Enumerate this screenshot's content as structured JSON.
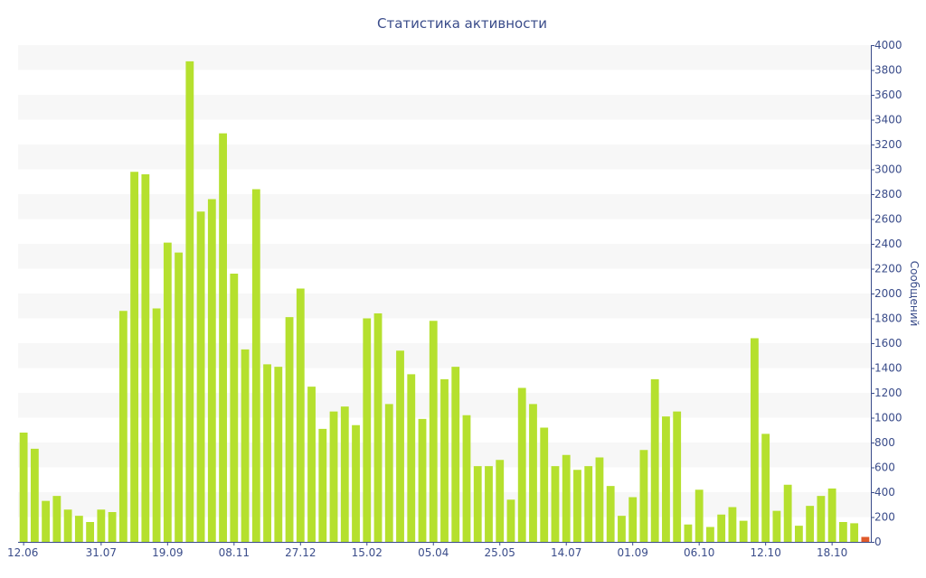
{
  "chart_data": {
    "type": "bar",
    "title": "Статистика активности",
    "ylabel": "Сообщений",
    "xlabel": "",
    "ylim": [
      0,
      4000
    ],
    "ytick_step": 200,
    "x_tick_labels": [
      {
        "index": 0,
        "label": "12.06"
      },
      {
        "index": 7,
        "label": "31.07"
      },
      {
        "index": 13,
        "label": "19.09"
      },
      {
        "index": 19,
        "label": "08.11"
      },
      {
        "index": 25,
        "label": "27.12"
      },
      {
        "index": 31,
        "label": "15.02"
      },
      {
        "index": 37,
        "label": "05.04"
      },
      {
        "index": 43,
        "label": "25.05"
      },
      {
        "index": 49,
        "label": "14.07"
      },
      {
        "index": 55,
        "label": "01.09"
      },
      {
        "index": 61,
        "label": "06.10"
      },
      {
        "index": 67,
        "label": "12.10"
      },
      {
        "index": 73,
        "label": "18.10"
      }
    ],
    "series": [
      {
        "color": "#b5e02e",
        "values": [
          880,
          750,
          330,
          370,
          260,
          210,
          160,
          260,
          240,
          1860,
          2980,
          2960,
          1880,
          2410,
          2330,
          3870,
          2660,
          2760,
          3290,
          2160,
          1550,
          2840,
          1430,
          1410,
          1810,
          2040,
          1250,
          910,
          1050,
          1090,
          940,
          1800,
          1840,
          1110,
          1540,
          1350,
          990,
          1780,
          1310,
          1410,
          1020,
          610,
          610,
          660,
          340,
          1240,
          1110,
          920,
          610,
          700,
          580,
          610,
          680,
          450,
          210,
          360,
          740,
          1310,
          1010,
          1050,
          140,
          420,
          120,
          220,
          280,
          170,
          1640,
          870,
          250,
          460,
          130,
          290,
          370,
          430,
          160,
          150,
          0
        ]
      },
      {
        "color": "#e05a2b",
        "values": [
          0,
          0,
          0,
          0,
          0,
          0,
          0,
          0,
          0,
          0,
          0,
          0,
          0,
          0,
          0,
          0,
          0,
          0,
          0,
          0,
          0,
          0,
          0,
          0,
          0,
          0,
          0,
          0,
          0,
          0,
          0,
          0,
          0,
          0,
          0,
          0,
          0,
          0,
          0,
          0,
          0,
          0,
          0,
          0,
          0,
          0,
          0,
          0,
          0,
          0,
          0,
          0,
          0,
          0,
          0,
          0,
          0,
          0,
          0,
          0,
          0,
          0,
          0,
          0,
          0,
          0,
          0,
          0,
          0,
          0,
          0,
          0,
          0,
          0,
          0,
          0,
          40
        ]
      }
    ],
    "grid": "alternating horizontal bands",
    "legend": "none"
  },
  "colors": {
    "text": "#3a4c8a",
    "band": "#f7f7f7",
    "axis": "#3a4c8a"
  }
}
